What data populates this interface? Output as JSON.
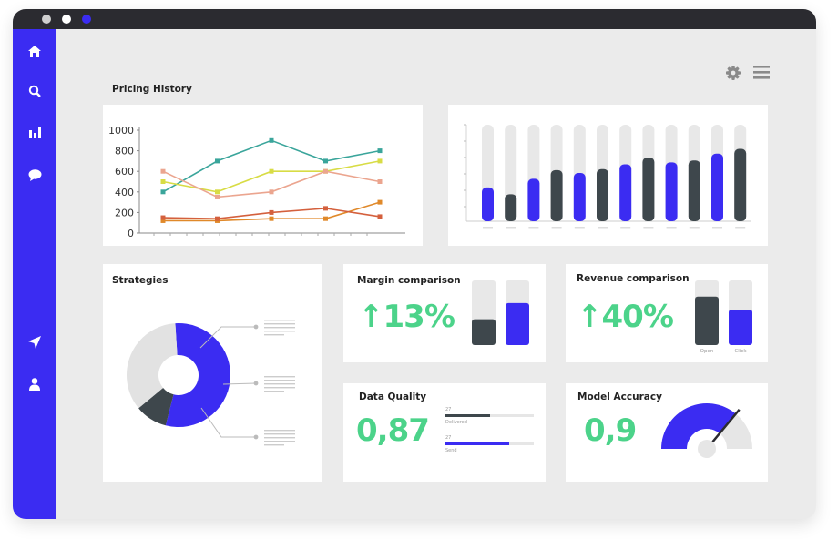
{
  "window": {
    "traffic_dots": [
      "#cfcfcf",
      "#ffffff",
      "#3b2cf2"
    ]
  },
  "sidebar": {
    "icons": [
      "home-icon",
      "search-icon",
      "bar-chart-icon",
      "chat-icon",
      "send-icon",
      "user-icon"
    ]
  },
  "header": {
    "icons": [
      "gear-icon",
      "menu-icon"
    ],
    "title": "Pricing History"
  },
  "colors": {
    "accent": "#3b2cf2",
    "dark": "#3e474c",
    "green": "#4cd38a",
    "light_bar": "#e8e8e8"
  },
  "chart_data": [
    {
      "type": "line",
      "title": "Pricing History",
      "x": [
        1,
        2,
        3,
        4,
        5
      ],
      "ylim": [
        0,
        1000
      ],
      "yticks": [
        "1000",
        "800",
        "600",
        "400",
        "200",
        "0"
      ],
      "series": [
        {
          "name": "teal",
          "color": "#3aa59b",
          "values": [
            400,
            700,
            900,
            700,
            800
          ]
        },
        {
          "name": "yellow",
          "color": "#d8dc45",
          "values": [
            500,
            400,
            600,
            600,
            700
          ]
        },
        {
          "name": "salmon",
          "color": "#eba58f",
          "values": [
            600,
            350,
            400,
            600,
            500
          ]
        },
        {
          "name": "orange",
          "color": "#e0892a",
          "values": [
            120,
            120,
            140,
            140,
            300
          ]
        },
        {
          "name": "red",
          "color": "#d4603d",
          "values": [
            150,
            140,
            200,
            240,
            160
          ]
        }
      ]
    },
    {
      "type": "bar",
      "series": [
        {
          "name": "bars",
          "values": [
            35,
            28,
            44,
            53,
            50,
            54,
            59,
            66,
            61,
            63,
            70,
            75
          ]
        }
      ],
      "bar_colors": [
        "accent",
        "dark",
        "accent",
        "dark",
        "accent",
        "dark",
        "accent",
        "dark",
        "accent",
        "dark",
        "accent",
        "dark"
      ],
      "ylim": [
        0,
        100
      ]
    },
    {
      "type": "pie",
      "title": "Strategies",
      "slices": [
        {
          "name": "blue",
          "value": 55,
          "color": "#3b2cf2"
        },
        {
          "name": "dark",
          "value": 10,
          "color": "#3e474c"
        },
        {
          "name": "light",
          "value": 35,
          "color": "#e2e2e2"
        }
      ]
    },
    {
      "type": "bar",
      "title": "Margin comparison",
      "values": [
        40,
        65
      ],
      "ylim": [
        0,
        100
      ]
    },
    {
      "type": "bar",
      "title": "Revenue comparison",
      "categories": [
        "Open",
        "Click"
      ],
      "values": [
        75,
        55
      ],
      "ylim": [
        0,
        100
      ]
    }
  ],
  "cards": {
    "strategies": {
      "title": "Strategies"
    },
    "margin": {
      "title": "Margin comparison",
      "value": "13%",
      "arrow": "↑"
    },
    "revenue": {
      "title": "Revenue comparison",
      "value": "40%",
      "arrow": "↑",
      "labels": [
        "Open",
        "Click"
      ]
    },
    "quality": {
      "title": "Data Quality",
      "value": "0,87",
      "rows": [
        {
          "num": "27",
          "label": "Delivered",
          "fraction": 0.5
        },
        {
          "num": "27",
          "label": "Send",
          "fraction": 0.72
        }
      ]
    },
    "accuracy": {
      "title": "Model Accuracy",
      "value": "0,9",
      "gauge_fraction": 0.72
    }
  }
}
